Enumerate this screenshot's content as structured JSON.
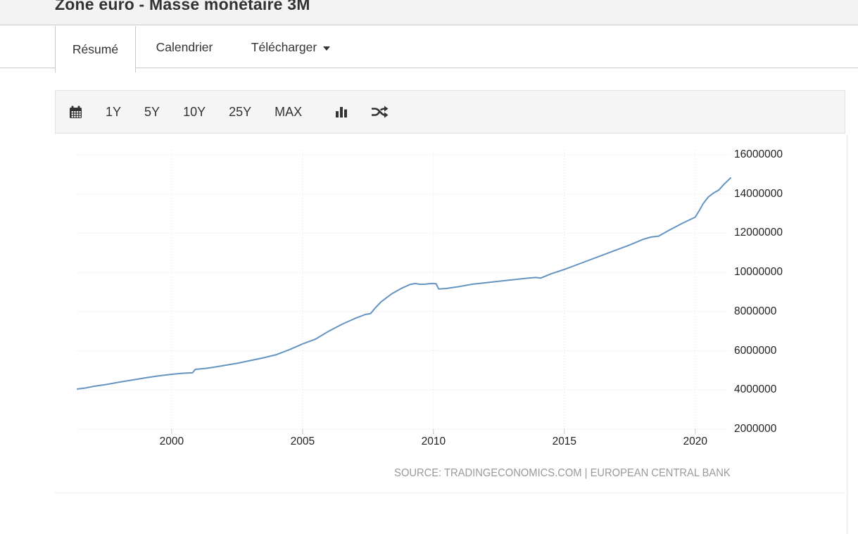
{
  "page": {
    "title": "Zone euro - Masse monétaire 3M"
  },
  "tabs": [
    {
      "label": "Résumé",
      "active": true
    },
    {
      "label": "Calendrier",
      "active": false
    },
    {
      "label": "Télécharger",
      "active": false,
      "has_dropdown": true
    }
  ],
  "toolbar": {
    "range_buttons": [
      "1Y",
      "5Y",
      "10Y",
      "25Y",
      "MAX"
    ],
    "icons": [
      "calendar-icon",
      "bar-chart-icon",
      "shuffle-icon"
    ]
  },
  "chart_data": {
    "type": "line",
    "title": "Zone euro - Masse monétaire 3M",
    "grid": "dotted",
    "legend": "none",
    "x_ticks": [
      2000,
      2005,
      2010,
      2015,
      2020
    ],
    "y_ticks": [
      2000000,
      4000000,
      6000000,
      8000000,
      10000000,
      12000000,
      14000000,
      16000000
    ],
    "xlim": [
      1996.4,
      2021.35
    ],
    "ylim": [
      2000000,
      16000000
    ],
    "line_color": "#6494c1",
    "source": "SOURCE: TRADINGECONOMICS.COM | EUROPEAN CENTRAL BANK",
    "series": [
      {
        "name": "Masse monétaire 3M",
        "points": [
          [
            1996.4,
            4050000
          ],
          [
            1996.7,
            4100000
          ],
          [
            1997.0,
            4180000
          ],
          [
            1997.5,
            4280000
          ],
          [
            1998.0,
            4400000
          ],
          [
            1998.5,
            4510000
          ],
          [
            1999.0,
            4620000
          ],
          [
            1999.5,
            4720000
          ],
          [
            2000.0,
            4800000
          ],
          [
            2000.4,
            4850000
          ],
          [
            2000.8,
            4880000
          ],
          [
            2000.9,
            5050000
          ],
          [
            2001.3,
            5100000
          ],
          [
            2001.6,
            5160000
          ],
          [
            2002.0,
            5250000
          ],
          [
            2002.5,
            5360000
          ],
          [
            2003.0,
            5500000
          ],
          [
            2003.5,
            5640000
          ],
          [
            2004.0,
            5800000
          ],
          [
            2004.5,
            6060000
          ],
          [
            2005.0,
            6350000
          ],
          [
            2005.5,
            6600000
          ],
          [
            2006.0,
            7000000
          ],
          [
            2006.5,
            7350000
          ],
          [
            2007.0,
            7650000
          ],
          [
            2007.4,
            7850000
          ],
          [
            2007.6,
            7900000
          ],
          [
            2007.75,
            8150000
          ],
          [
            2008.0,
            8500000
          ],
          [
            2008.4,
            8900000
          ],
          [
            2008.8,
            9200000
          ],
          [
            2009.1,
            9380000
          ],
          [
            2009.3,
            9430000
          ],
          [
            2009.5,
            9390000
          ],
          [
            2009.7,
            9400000
          ],
          [
            2009.9,
            9430000
          ],
          [
            2010.1,
            9420000
          ],
          [
            2010.2,
            9150000
          ],
          [
            2010.5,
            9180000
          ],
          [
            2011.0,
            9280000
          ],
          [
            2011.5,
            9400000
          ],
          [
            2012.0,
            9470000
          ],
          [
            2012.5,
            9550000
          ],
          [
            2013.0,
            9620000
          ],
          [
            2013.5,
            9690000
          ],
          [
            2013.9,
            9740000
          ],
          [
            2014.1,
            9710000
          ],
          [
            2014.5,
            9930000
          ],
          [
            2015.0,
            10150000
          ],
          [
            2015.5,
            10400000
          ],
          [
            2016.0,
            10650000
          ],
          [
            2016.5,
            10900000
          ],
          [
            2017.0,
            11150000
          ],
          [
            2017.5,
            11400000
          ],
          [
            2018.0,
            11680000
          ],
          [
            2018.3,
            11800000
          ],
          [
            2018.6,
            11850000
          ],
          [
            2019.0,
            12150000
          ],
          [
            2019.5,
            12500000
          ],
          [
            2020.0,
            12820000
          ],
          [
            2020.15,
            13150000
          ],
          [
            2020.3,
            13500000
          ],
          [
            2020.5,
            13850000
          ],
          [
            2020.7,
            14050000
          ],
          [
            2020.9,
            14200000
          ],
          [
            2021.1,
            14500000
          ],
          [
            2021.35,
            14820000
          ]
        ]
      }
    ]
  }
}
